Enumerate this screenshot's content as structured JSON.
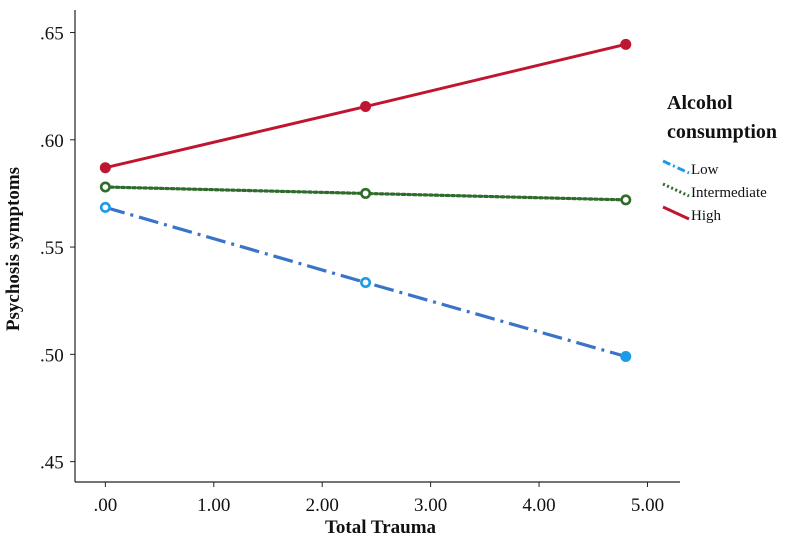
{
  "chart_data": {
    "type": "line",
    "xlabel": "Total Trauma",
    "ylabel": "Psychosis symptoms",
    "x": [
      0,
      2.4,
      4.8
    ],
    "xlim": [
      -0.28,
      5.3
    ],
    "ylim": [
      0.4405,
      0.6605
    ],
    "xticks": [
      0,
      1,
      2,
      3,
      4,
      5
    ],
    "xtick_labels": [
      ".00",
      "1.00",
      "2.00",
      "3.00",
      "4.00",
      "5.00"
    ],
    "yticks": [
      0.45,
      0.5,
      0.55,
      0.6,
      0.65
    ],
    "ytick_labels": [
      ".45",
      ".50",
      ".55",
      ".60",
      ".65"
    ],
    "grid": false,
    "legend_title_lines": [
      "Alcohol",
      "consumption"
    ],
    "legend_position": "right",
    "series": [
      {
        "name": "Low",
        "values": [
          0.5685,
          0.5335,
          0.499
        ],
        "color": "#3b73c8",
        "dash": "dash-dot",
        "marker": "open-then-filled"
      },
      {
        "name": "Intermediate",
        "values": [
          0.578,
          0.575,
          0.572
        ],
        "color": "#2f6b2a",
        "dash": "dotted",
        "marker": "open"
      },
      {
        "name": "High",
        "values": [
          0.587,
          0.6155,
          0.6445
        ],
        "color": "#c01530",
        "dash": "solid",
        "marker": "filled"
      }
    ]
  }
}
